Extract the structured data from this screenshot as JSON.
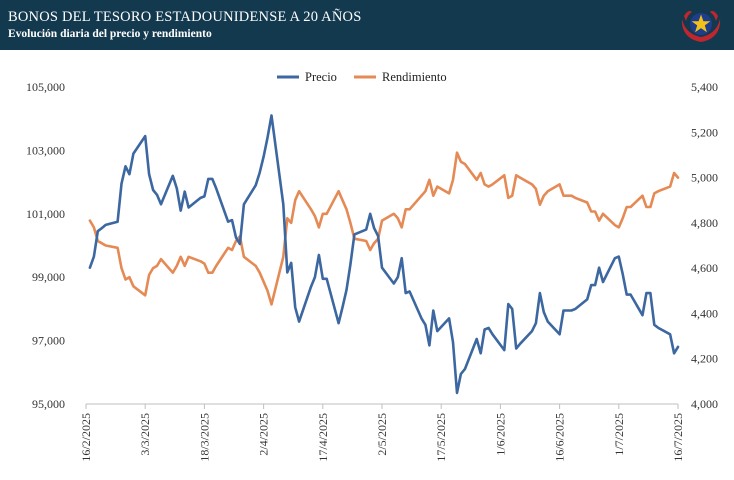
{
  "header": {
    "title": "BONOS DEL TESORO ESTADOUNIDENSE A 20 AÑOS",
    "subtitle": "Evolución diaria del precio y rendimiento"
  },
  "chart_data": {
    "type": "line",
    "title": "BONOS DEL TESORO ESTADOUNIDENSE A 20 AÑOS",
    "subtitle": "Evolución diaria del precio y rendimiento",
    "legend_position": "top-center",
    "grid": false,
    "x_tick_labels": [
      "16/2/2025",
      "3/3/2025",
      "18/3/2025",
      "2/4/2025",
      "17/4/2025",
      "2/5/2025",
      "17/5/2025",
      "1/6/2025",
      "16/6/2025",
      "1/7/2025",
      "16/7/2025"
    ],
    "y_left": {
      "min": 95000,
      "max": 105000,
      "ticks": [
        "95,000",
        "97,000",
        "99,000",
        "101,000",
        "103,000",
        "105,000"
      ]
    },
    "y_right": {
      "min": 4000,
      "max": 5400,
      "ticks": [
        "4,000",
        "4,200",
        "4,400",
        "4,600",
        "4,800",
        "5,000",
        "5,200",
        "5,400"
      ]
    },
    "series": [
      {
        "name": "Precio",
        "axis": "left",
        "color": "#3c67a0",
        "points": [
          [
            "2025-02-17",
            99300
          ],
          [
            "2025-02-18",
            99650
          ],
          [
            "2025-02-19",
            100450
          ],
          [
            "2025-02-20",
            100550
          ],
          [
            "2025-02-21",
            100650
          ],
          [
            "2025-02-24",
            100750
          ],
          [
            "2025-02-25",
            101950
          ],
          [
            "2025-02-26",
            102500
          ],
          [
            "2025-02-27",
            102250
          ],
          [
            "2025-02-28",
            102900
          ],
          [
            "2025-03-03",
            103450
          ],
          [
            "2025-03-04",
            102250
          ],
          [
            "2025-03-05",
            101750
          ],
          [
            "2025-03-06",
            101600
          ],
          [
            "2025-03-07",
            101300
          ],
          [
            "2025-03-10",
            102200
          ],
          [
            "2025-03-11",
            101800
          ],
          [
            "2025-03-12",
            101100
          ],
          [
            "2025-03-13",
            101700
          ],
          [
            "2025-03-14",
            101200
          ],
          [
            "2025-03-17",
            101500
          ],
          [
            "2025-03-18",
            101550
          ],
          [
            "2025-03-19",
            102100
          ],
          [
            "2025-03-20",
            102100
          ],
          [
            "2025-03-21",
            101800
          ],
          [
            "2025-03-24",
            100750
          ],
          [
            "2025-03-25",
            100800
          ],
          [
            "2025-03-26",
            100250
          ],
          [
            "2025-03-27",
            100050
          ],
          [
            "2025-03-28",
            101300
          ],
          [
            "2025-03-31",
            101900
          ],
          [
            "2025-04-01",
            102300
          ],
          [
            "2025-04-02",
            102800
          ],
          [
            "2025-04-03",
            103400
          ],
          [
            "2025-04-04",
            104100
          ],
          [
            "2025-04-07",
            101300
          ],
          [
            "2025-04-08",
            99150
          ],
          [
            "2025-04-09",
            99450
          ],
          [
            "2025-04-10",
            98050
          ],
          [
            "2025-04-11",
            97600
          ],
          [
            "2025-04-14",
            98700
          ],
          [
            "2025-04-15",
            99000
          ],
          [
            "2025-04-16",
            99700
          ],
          [
            "2025-04-17",
            98950
          ],
          [
            "2025-04-18",
            98950
          ],
          [
            "2025-04-21",
            97550
          ],
          [
            "2025-04-22",
            98050
          ],
          [
            "2025-04-23",
            98600
          ],
          [
            "2025-04-24",
            99400
          ],
          [
            "2025-04-25",
            100350
          ],
          [
            "2025-04-28",
            100500
          ],
          [
            "2025-04-29",
            101000
          ],
          [
            "2025-04-30",
            100550
          ],
          [
            "2025-05-01",
            100300
          ],
          [
            "2025-05-02",
            99300
          ],
          [
            "2025-05-05",
            98800
          ],
          [
            "2025-05-06",
            99000
          ],
          [
            "2025-05-07",
            99600
          ],
          [
            "2025-05-08",
            98500
          ],
          [
            "2025-05-09",
            98550
          ],
          [
            "2025-05-12",
            97700
          ],
          [
            "2025-05-13",
            97500
          ],
          [
            "2025-05-14",
            96850
          ],
          [
            "2025-05-15",
            97950
          ],
          [
            "2025-05-16",
            97300
          ],
          [
            "2025-05-19",
            97700
          ],
          [
            "2025-05-20",
            96950
          ],
          [
            "2025-05-21",
            95350
          ],
          [
            "2025-05-22",
            95950
          ],
          [
            "2025-05-23",
            96100
          ],
          [
            "2025-05-26",
            97050
          ],
          [
            "2025-05-27",
            96600
          ],
          [
            "2025-05-28",
            97350
          ],
          [
            "2025-05-29",
            97400
          ],
          [
            "2025-05-30",
            97200
          ],
          [
            "2025-06-02",
            96700
          ],
          [
            "2025-06-03",
            98150
          ],
          [
            "2025-06-04",
            98000
          ],
          [
            "2025-06-05",
            96750
          ],
          [
            "2025-06-06",
            96900
          ],
          [
            "2025-06-09",
            97300
          ],
          [
            "2025-06-10",
            97550
          ],
          [
            "2025-06-11",
            98500
          ],
          [
            "2025-06-12",
            97900
          ],
          [
            "2025-06-13",
            97600
          ],
          [
            "2025-06-16",
            97200
          ],
          [
            "2025-06-17",
            97950
          ],
          [
            "2025-06-18",
            97950
          ],
          [
            "2025-06-19",
            97950
          ],
          [
            "2025-06-20",
            98000
          ],
          [
            "2025-06-23",
            98300
          ],
          [
            "2025-06-24",
            98750
          ],
          [
            "2025-06-25",
            98750
          ],
          [
            "2025-06-26",
            99300
          ],
          [
            "2025-06-27",
            98850
          ],
          [
            "2025-06-30",
            99600
          ],
          [
            "2025-07-01",
            99650
          ],
          [
            "2025-07-02",
            99100
          ],
          [
            "2025-07-03",
            98450
          ],
          [
            "2025-07-04",
            98450
          ],
          [
            "2025-07-07",
            97800
          ],
          [
            "2025-07-08",
            98500
          ],
          [
            "2025-07-09",
            98500
          ],
          [
            "2025-07-10",
            97500
          ],
          [
            "2025-07-11",
            97400
          ],
          [
            "2025-07-14",
            97200
          ],
          [
            "2025-07-15",
            96600
          ],
          [
            "2025-07-16",
            96800
          ]
        ]
      },
      {
        "name": "Rendimiento",
        "axis": "right",
        "color": "#e58a55",
        "points": [
          [
            "2025-02-17",
            4810
          ],
          [
            "2025-02-18",
            4780
          ],
          [
            "2025-02-19",
            4720
          ],
          [
            "2025-02-20",
            4710
          ],
          [
            "2025-02-21",
            4700
          ],
          [
            "2025-02-24",
            4690
          ],
          [
            "2025-02-25",
            4600
          ],
          [
            "2025-02-26",
            4550
          ],
          [
            "2025-02-27",
            4560
          ],
          [
            "2025-02-28",
            4520
          ],
          [
            "2025-03-03",
            4480
          ],
          [
            "2025-03-04",
            4570
          ],
          [
            "2025-03-05",
            4600
          ],
          [
            "2025-03-06",
            4610
          ],
          [
            "2025-03-07",
            4640
          ],
          [
            "2025-03-10",
            4580
          ],
          [
            "2025-03-11",
            4610
          ],
          [
            "2025-03-12",
            4650
          ],
          [
            "2025-03-13",
            4610
          ],
          [
            "2025-03-14",
            4650
          ],
          [
            "2025-03-17",
            4630
          ],
          [
            "2025-03-18",
            4620
          ],
          [
            "2025-03-19",
            4580
          ],
          [
            "2025-03-20",
            4580
          ],
          [
            "2025-03-21",
            4610
          ],
          [
            "2025-03-24",
            4690
          ],
          [
            "2025-03-25",
            4680
          ],
          [
            "2025-03-26",
            4720
          ],
          [
            "2025-03-27",
            4740
          ],
          [
            "2025-03-28",
            4650
          ],
          [
            "2025-03-31",
            4610
          ],
          [
            "2025-04-01",
            4580
          ],
          [
            "2025-04-02",
            4540
          ],
          [
            "2025-04-03",
            4500
          ],
          [
            "2025-04-04",
            4440
          ],
          [
            "2025-04-07",
            4650
          ],
          [
            "2025-04-08",
            4820
          ],
          [
            "2025-04-09",
            4800
          ],
          [
            "2025-04-10",
            4900
          ],
          [
            "2025-04-11",
            4940
          ],
          [
            "2025-04-14",
            4860
          ],
          [
            "2025-04-15",
            4830
          ],
          [
            "2025-04-16",
            4780
          ],
          [
            "2025-04-17",
            4840
          ],
          [
            "2025-04-18",
            4840
          ],
          [
            "2025-04-21",
            4940
          ],
          [
            "2025-04-22",
            4900
          ],
          [
            "2025-04-23",
            4860
          ],
          [
            "2025-04-24",
            4800
          ],
          [
            "2025-04-25",
            4730
          ],
          [
            "2025-04-28",
            4720
          ],
          [
            "2025-04-29",
            4680
          ],
          [
            "2025-04-30",
            4710
          ],
          [
            "2025-05-01",
            4730
          ],
          [
            "2025-05-02",
            4810
          ],
          [
            "2025-05-05",
            4840
          ],
          [
            "2025-05-06",
            4820
          ],
          [
            "2025-05-07",
            4780
          ],
          [
            "2025-05-08",
            4860
          ],
          [
            "2025-05-09",
            4860
          ],
          [
            "2025-05-12",
            4920
          ],
          [
            "2025-05-13",
            4940
          ],
          [
            "2025-05-14",
            4990
          ],
          [
            "2025-05-15",
            4920
          ],
          [
            "2025-05-16",
            4960
          ],
          [
            "2025-05-19",
            4930
          ],
          [
            "2025-05-20",
            4990
          ],
          [
            "2025-05-21",
            5110
          ],
          [
            "2025-05-22",
            5070
          ],
          [
            "2025-05-23",
            5060
          ],
          [
            "2025-05-26",
            4990
          ],
          [
            "2025-05-27",
            5020
          ],
          [
            "2025-05-28",
            4970
          ],
          [
            "2025-05-29",
            4960
          ],
          [
            "2025-05-30",
            4970
          ],
          [
            "2025-06-02",
            5010
          ],
          [
            "2025-06-03",
            4910
          ],
          [
            "2025-06-04",
            4920
          ],
          [
            "2025-06-05",
            5010
          ],
          [
            "2025-06-06",
            5000
          ],
          [
            "2025-06-09",
            4970
          ],
          [
            "2025-06-10",
            4950
          ],
          [
            "2025-06-11",
            4880
          ],
          [
            "2025-06-12",
            4920
          ],
          [
            "2025-06-13",
            4940
          ],
          [
            "2025-06-16",
            4970
          ],
          [
            "2025-06-17",
            4920
          ],
          [
            "2025-06-18",
            4920
          ],
          [
            "2025-06-19",
            4920
          ],
          [
            "2025-06-20",
            4910
          ],
          [
            "2025-06-23",
            4890
          ],
          [
            "2025-06-24",
            4850
          ],
          [
            "2025-06-25",
            4850
          ],
          [
            "2025-06-26",
            4810
          ],
          [
            "2025-06-27",
            4840
          ],
          [
            "2025-06-30",
            4790
          ],
          [
            "2025-07-01",
            4780
          ],
          [
            "2025-07-02",
            4820
          ],
          [
            "2025-07-03",
            4870
          ],
          [
            "2025-07-04",
            4870
          ],
          [
            "2025-07-07",
            4920
          ],
          [
            "2025-07-08",
            4870
          ],
          [
            "2025-07-09",
            4870
          ],
          [
            "2025-07-10",
            4930
          ],
          [
            "2025-07-11",
            4940
          ],
          [
            "2025-07-14",
            4960
          ],
          [
            "2025-07-15",
            5020
          ],
          [
            "2025-07-16",
            5000
          ]
        ]
      }
    ]
  }
}
